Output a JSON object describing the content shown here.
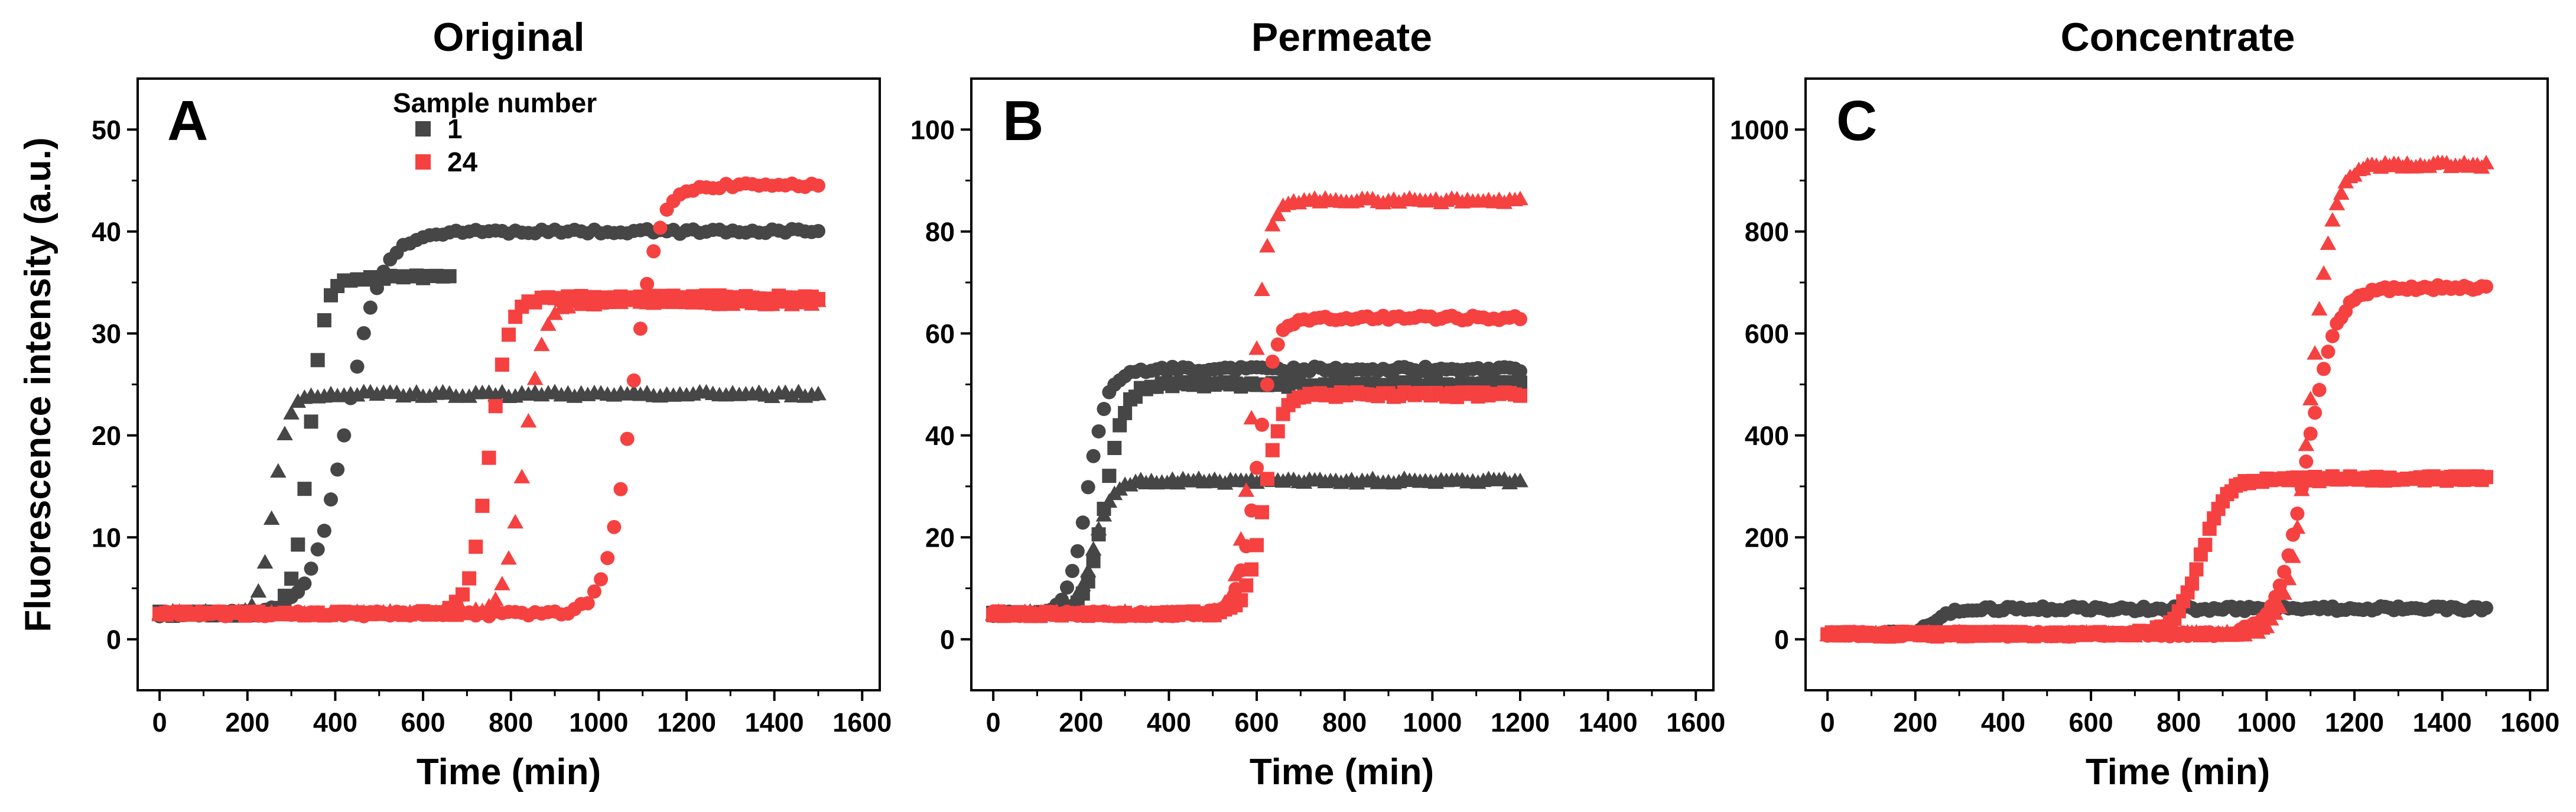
{
  "figure": {
    "ylabel_shared": "Fluorescence intensity (a.u.)",
    "colors": {
      "sample_1": "#464646",
      "sample_24": "#f64141"
    },
    "legend": {
      "title": "Sample number",
      "items": [
        "1",
        "24"
      ]
    }
  },
  "chart_data": [
    {
      "type": "scatter",
      "panel": "A",
      "title": "Original",
      "xlabel": "Time (min)",
      "ylabel": "Fluorescence intensity (a.u.)",
      "xlim": [
        -50,
        1640
      ],
      "ylim": [
        -5,
        55
      ],
      "xticks": [
        0,
        200,
        400,
        600,
        800,
        1000,
        1200,
        1400,
        1600
      ],
      "yticks": [
        0,
        10,
        20,
        30,
        40,
        50
      ],
      "xtick_labels": [
        "0",
        "200",
        "400",
        "600",
        "800",
        "1000",
        "1200",
        "1400",
        "1600"
      ],
      "ytick_labels": [
        "0",
        "10",
        "20",
        "30",
        "40",
        "50"
      ],
      "series": [
        {
          "name": "1",
          "marker": "circle",
          "color": "#464646",
          "x0": 0,
          "x1": 1500,
          "step": 15,
          "base": 2.5,
          "plateau": 40,
          "mid": 425,
          "k": 0.025,
          "end_x": 1500
        },
        {
          "name": "1",
          "marker": "square",
          "color": "#464646",
          "x0": 0,
          "x1": 660,
          "step": 15,
          "base": 2.5,
          "plateau": 35.5,
          "mid": 340,
          "k": 0.055,
          "end_x": 660
        },
        {
          "name": "1",
          "marker": "triangle",
          "color": "#464646",
          "x0": 0,
          "x1": 1500,
          "step": 15,
          "base": 2.5,
          "plateau": 24,
          "mid": 260,
          "k": 0.06,
          "end_x": 1500
        },
        {
          "name": "24",
          "marker": "circle",
          "color": "#f64141",
          "x0": 0,
          "x1": 1500,
          "step": 15,
          "base": 2.5,
          "plateau": 44.5,
          "mid": 1075,
          "k": 0.035,
          "end_x": 1500
        },
        {
          "name": "24",
          "marker": "square",
          "color": "#f64141",
          "x0": 0,
          "x1": 1500,
          "step": 15,
          "base": 2.5,
          "plateau": 33.5,
          "mid": 750,
          "k": 0.045,
          "end_x": 1500
        },
        {
          "name": "24",
          "marker": "triangle",
          "color": "#f64141",
          "x0": 0,
          "x1": 1500,
          "step": 15,
          "base": 2.5,
          "plateau": 33,
          "mid": 830,
          "k": 0.045,
          "end_x": 1500
        }
      ]
    },
    {
      "type": "scatter",
      "panel": "B",
      "title": "Permeate",
      "xlabel": "Time (min)",
      "ylabel": "",
      "xlim": [
        -50,
        1640
      ],
      "ylim": [
        -10,
        110
      ],
      "xticks": [
        0,
        200,
        400,
        600,
        800,
        1000,
        1200,
        1400,
        1600
      ],
      "yticks": [
        0,
        20,
        40,
        60,
        80,
        100
      ],
      "xtick_labels": [
        "0",
        "200",
        "400",
        "600",
        "800",
        "1000",
        "1200",
        "1400",
        "1600"
      ],
      "ytick_labels": [
        "0",
        "20",
        "40",
        "60",
        "80",
        "100"
      ],
      "series": [
        {
          "name": "1",
          "marker": "circle",
          "color": "#464646",
          "x0": 0,
          "x1": 1200,
          "step": 12,
          "base": 5,
          "plateau": 53,
          "mid": 215,
          "k": 0.045,
          "end_x": 1200
        },
        {
          "name": "1",
          "marker": "square",
          "color": "#464646",
          "x0": 0,
          "x1": 1200,
          "step": 12,
          "base": 5,
          "plateau": 50,
          "mid": 255,
          "k": 0.045,
          "end_x": 1200
        },
        {
          "name": "1",
          "marker": "triangle",
          "color": "#464646",
          "x0": 0,
          "x1": 1200,
          "step": 12,
          "base": 5,
          "plateau": 31,
          "mid": 230,
          "k": 0.05,
          "end_x": 1200
        },
        {
          "name": "24",
          "marker": "triangle",
          "color": "#f64141",
          "x0": 0,
          "x1": 1200,
          "step": 12,
          "base": 5,
          "plateau": 86,
          "mid": 590,
          "k": 0.06,
          "end_x": 1200
        },
        {
          "name": "24",
          "marker": "circle",
          "color": "#f64141",
          "x0": 0,
          "x1": 1200,
          "step": 12,
          "base": 5,
          "plateau": 63,
          "mid": 600,
          "k": 0.05,
          "end_x": 1200
        },
        {
          "name": "24",
          "marker": "square",
          "color": "#f64141",
          "x0": 0,
          "x1": 1200,
          "step": 12,
          "base": 5,
          "plateau": 48,
          "mid": 615,
          "k": 0.05,
          "end_x": 1200
        }
      ]
    },
    {
      "type": "scatter",
      "panel": "C",
      "title": "Concentrate",
      "xlabel": "Time (min)",
      "ylabel": "",
      "xlim": [
        -50,
        1640
      ],
      "ylim": [
        -100,
        1100
      ],
      "xticks": [
        0,
        200,
        400,
        600,
        800,
        1000,
        1200,
        1400,
        1600
      ],
      "yticks": [
        0,
        200,
        400,
        600,
        800,
        1000
      ],
      "xtick_labels": [
        "0",
        "200",
        "400",
        "600",
        "800",
        "1000",
        "1200",
        "1400",
        "1600"
      ],
      "ytick_labels": [
        "0",
        "200",
        "400",
        "600",
        "800",
        "1000"
      ],
      "series": [
        {
          "name": "1",
          "marker": "circle",
          "color": "#464646",
          "x0": 0,
          "x1": 1500,
          "step": 10,
          "base": 10,
          "plateau": 60,
          "mid": 240,
          "k": 0.04,
          "end_x": 1500
        },
        {
          "name": "24",
          "marker": "square",
          "color": "#f64141",
          "x0": 0,
          "x1": 1500,
          "step": 10,
          "base": 10,
          "plateau": 315,
          "mid": 850,
          "k": 0.035,
          "end_x": 1500
        },
        {
          "name": "24",
          "marker": "circle",
          "color": "#f64141",
          "x0": 0,
          "x1": 1500,
          "step": 10,
          "base": 10,
          "plateau": 690,
          "mid": 1090,
          "k": 0.03,
          "end_x": 1500
        },
        {
          "name": "24",
          "marker": "triangle",
          "color": "#f64141",
          "x0": 0,
          "x1": 1500,
          "step": 10,
          "base": 10,
          "plateau": 930,
          "mid": 1100,
          "k": 0.04,
          "end_x": 1500
        }
      ]
    }
  ]
}
